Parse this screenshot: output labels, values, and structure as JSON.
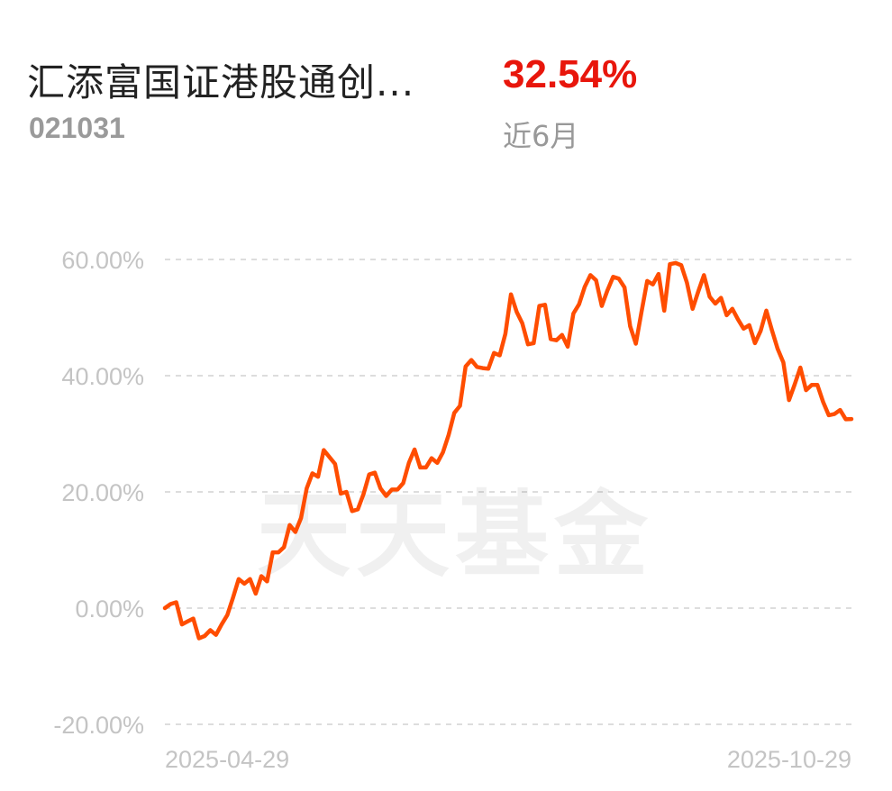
{
  "header": {
    "fund_name": "汇添富国证港股通创...",
    "fund_code": "021031",
    "return_value": "32.54%",
    "period_label": "近6月"
  },
  "watermark": "天天基金",
  "colors": {
    "line": "#ff4d00",
    "positive_return": "#e8160c",
    "grid": "#dddddd",
    "tick_label": "#c4c4c4"
  },
  "chart_data": {
    "type": "line",
    "title": "",
    "xlabel": "",
    "ylabel": "",
    "ylim": [
      -20,
      60
    ],
    "grid": "horizontal-dashed",
    "y_ticks": [
      {
        "value": 60,
        "label": "60.00%"
      },
      {
        "value": 40,
        "label": "40.00%"
      },
      {
        "value": 20,
        "label": "20.00%"
      },
      {
        "value": 0,
        "label": "0.00%"
      },
      {
        "value": -20,
        "label": "-20.00%"
      }
    ],
    "x_tick_labels": [
      "2025-04-29",
      "2025-10-29"
    ],
    "series": [
      {
        "values": [
          0.0,
          0.7,
          1.0,
          -2.8,
          -2.3,
          -1.8,
          -5.2,
          -4.8,
          -3.8,
          -4.6,
          -2.8,
          -1.2,
          1.8,
          5.0,
          4.2,
          5.0,
          2.5,
          5.5,
          4.6,
          9.6,
          9.6,
          10.5,
          14.3,
          13.1,
          15.5,
          20.6,
          23.2,
          22.6,
          27.2,
          26.0,
          24.8,
          19.7,
          20.0,
          16.7,
          17.0,
          19.6,
          23.0,
          23.3,
          20.6,
          19.3,
          20.4,
          20.4,
          21.5,
          25.0,
          27.3,
          24.2,
          24.2,
          25.8,
          25.0,
          26.8,
          29.8,
          33.6,
          34.8,
          41.6,
          42.7,
          41.5,
          41.3,
          41.2,
          43.9,
          43.5,
          47.2,
          54.0,
          51.0,
          49.0,
          45.4,
          45.6,
          52.0,
          52.2,
          46.3,
          46.1,
          47.0,
          45.0,
          50.7,
          52.3,
          55.3,
          57.3,
          56.4,
          52.0,
          54.7,
          57.0,
          56.7,
          55.2,
          48.5,
          45.5,
          51.0,
          56.3,
          55.7,
          57.5,
          51.2,
          59.2,
          59.4,
          59.0,
          56.0,
          51.5,
          54.5,
          57.3,
          53.6,
          52.4,
          53.4,
          50.4,
          51.5,
          49.7,
          48.1,
          48.7,
          45.6,
          47.7,
          51.2,
          47.8,
          44.6,
          42.3,
          35.8,
          38.5,
          41.4,
          37.5,
          38.4,
          38.4,
          35.5,
          33.2,
          33.4,
          34.1,
          32.5,
          32.54
        ]
      }
    ]
  }
}
